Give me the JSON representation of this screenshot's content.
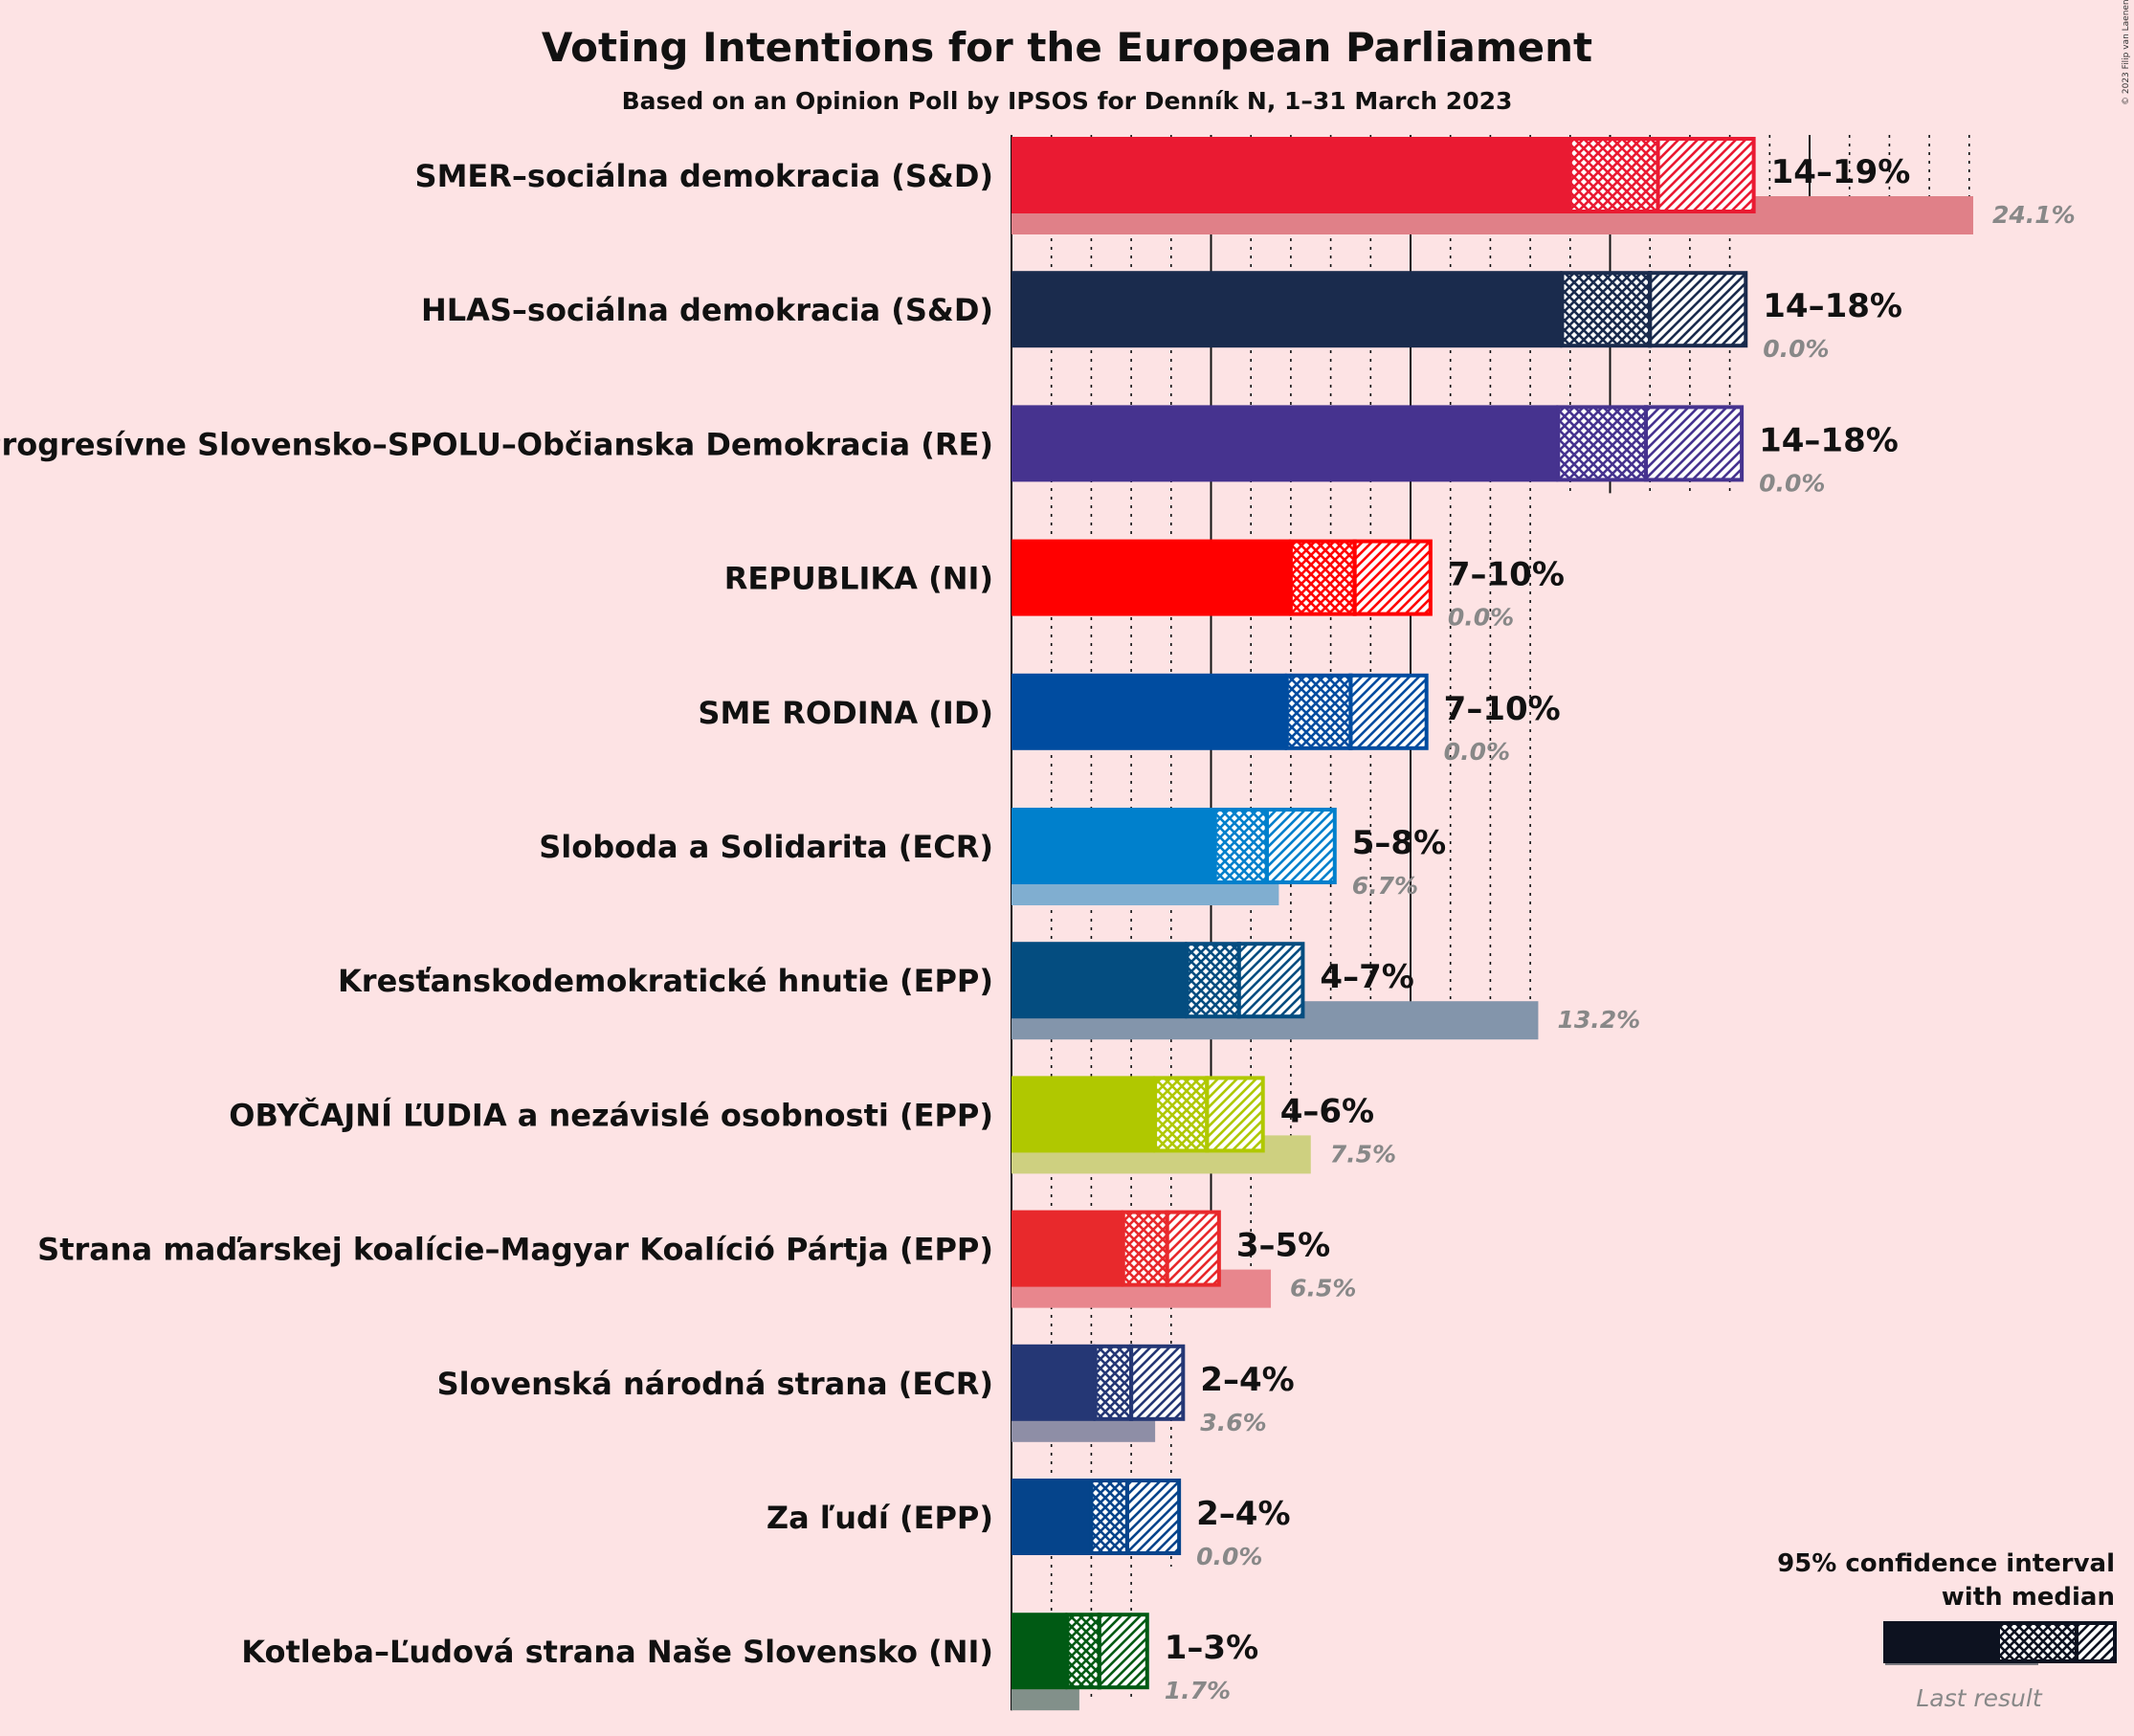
{
  "title": "Voting Intentions for the European Parliament",
  "subtitle": "Based on an Opinion Poll by IPSOS for Denník N, 1–31 March 2023",
  "copyright": "© 2023 Filip van Laenen",
  "legend": {
    "title_line1": "95% confidence interval",
    "title_line2": "with median",
    "last_result_label": "Last result"
  },
  "chart_data": {
    "type": "bar",
    "orientation": "horizontal",
    "title": "Voting Intentions for the European Parliament",
    "subtitle": "Based on an Opinion Poll by IPSOS for Denník N, 1–31 March 2023",
    "xlim": [
      0,
      28
    ],
    "unit": "%",
    "parties": [
      {
        "name": "SMER–sociálna demokracia (S&D)",
        "color": "#ea1a32",
        "ci_low": 14.0,
        "median": 16.2,
        "ci_high": 18.6,
        "range_label": "14–19%",
        "last": 24.1,
        "last_label": "24.1%",
        "last_color": "#e08088"
      },
      {
        "name": "HLAS–sociálna demokracia (S&D)",
        "color": "#1a2b4d",
        "ci_low": 13.8,
        "median": 16.0,
        "ci_high": 18.4,
        "range_label": "14–18%",
        "last": 0.0,
        "last_label": "0.0%",
        "last_color": "#7d8595"
      },
      {
        "name": "Progresívne Slovensko–SPOLU–Občianska Demokracia (RE)",
        "color": "#46338f",
        "ci_low": 13.7,
        "median": 15.9,
        "ci_high": 18.3,
        "range_label": "14–18%",
        "last": 0.0,
        "last_label": "0.0%",
        "last_color": "#9186b8"
      },
      {
        "name": "REPUBLIKA (NI)",
        "color": "#ff0000",
        "ci_low": 7.0,
        "median": 8.6,
        "ci_high": 10.5,
        "range_label": "7–10%",
        "last": 0.0,
        "last_label": "0.0%",
        "last_color": "#f48080"
      },
      {
        "name": "SME RODINA (ID)",
        "color": "#004ca0",
        "ci_low": 6.9,
        "median": 8.5,
        "ci_high": 10.4,
        "range_label": "7–10%",
        "last": 0.0,
        "last_label": "0.0%",
        "last_color": "#7a9cc8"
      },
      {
        "name": "Sloboda a Solidarita (ECR)",
        "color": "#0080cc",
        "ci_low": 5.1,
        "median": 6.4,
        "ci_high": 8.1,
        "range_label": "5–8%",
        "last": 6.7,
        "last_label": "6.7%",
        "last_color": "#80aed0"
      },
      {
        "name": "Kresťanskodemokratické hnutie (EPP)",
        "color": "#044d80",
        "ci_low": 4.4,
        "median": 5.7,
        "ci_high": 7.3,
        "range_label": "4–7%",
        "last": 13.2,
        "last_label": "13.2%",
        "last_color": "#8395ab"
      },
      {
        "name": "OBYČAJNÍ ĽUDIA a nezávislé osobnosti (EPP)",
        "color": "#b0c800",
        "ci_low": 3.6,
        "median": 4.9,
        "ci_high": 6.3,
        "range_label": "4–6%",
        "last": 7.5,
        "last_label": "7.5%",
        "last_color": "#ced080"
      },
      {
        "name": "Strana maďarskej koalície–Magyar Koalíció Pártja (EPP)",
        "color": "#e8292c",
        "ci_low": 2.8,
        "median": 3.9,
        "ci_high": 5.2,
        "range_label": "3–5%",
        "last": 6.5,
        "last_label": "6.5%",
        "last_color": "#e8868d"
      },
      {
        "name": "Slovenská národná strana (ECR)",
        "color": "#253775",
        "ci_low": 2.1,
        "median": 3.0,
        "ci_high": 4.3,
        "range_label": "2–4%",
        "last": 3.6,
        "last_label": "3.6%",
        "last_color": "#8e8ea6"
      },
      {
        "name": "Za ľudí (EPP)",
        "color": "#05448b",
        "ci_low": 2.0,
        "median": 2.9,
        "ci_high": 4.2,
        "range_label": "2–4%",
        "last": 0.0,
        "last_label": "0.0%",
        "last_color": "#7d97c0"
      },
      {
        "name": "Kotleba–Ľudová strana Naše Slovensko (NI)",
        "color": "#005a14",
        "ci_low": 1.4,
        "median": 2.2,
        "ci_high": 3.4,
        "range_label": "1–3%",
        "last": 1.7,
        "last_label": "1.7%",
        "last_color": "#82908a"
      }
    ]
  }
}
